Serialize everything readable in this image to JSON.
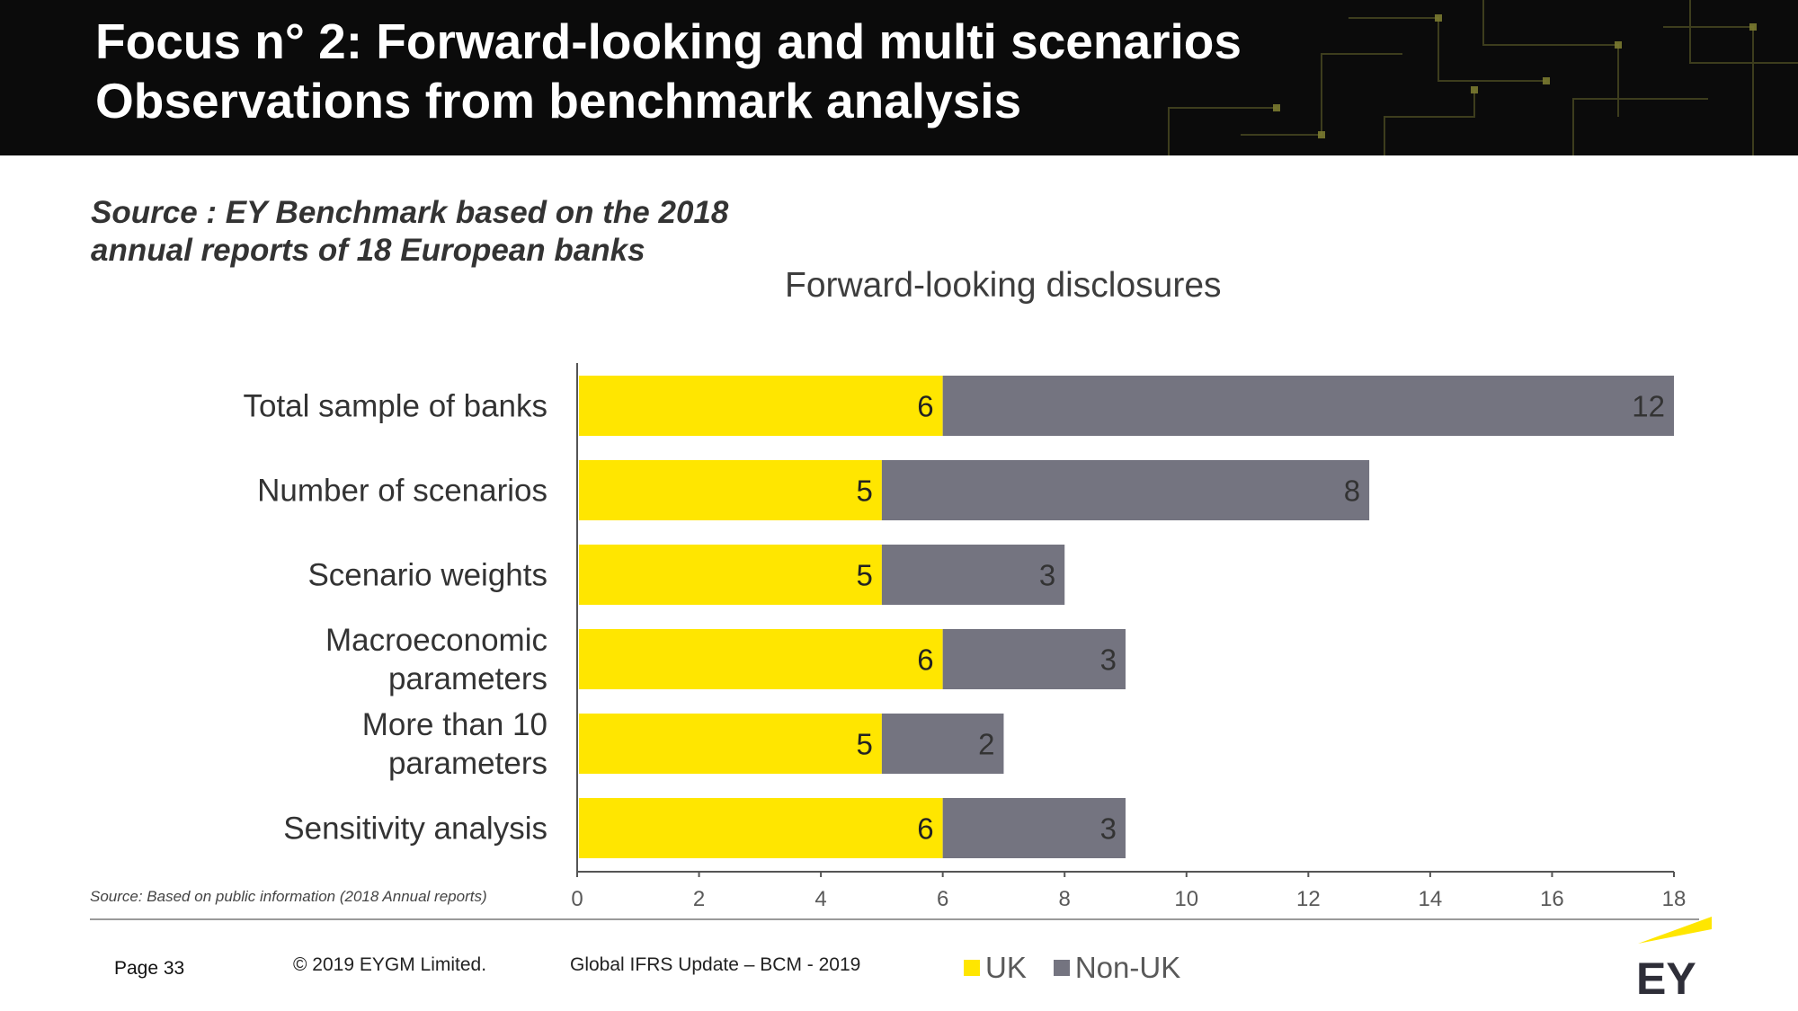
{
  "header": {
    "title_line1": "Focus n° 2: Forward-looking and multi scenarios",
    "title_line2": "Observations from benchmark analysis"
  },
  "source": {
    "line1": "Source : EY Benchmark based on the 2018",
    "line2": "annual reports of 18 European banks"
  },
  "chart_data": {
    "type": "bar",
    "orientation": "horizontal",
    "stacked": true,
    "title": "Forward-looking disclosures",
    "categories": [
      [
        "Total sample of banks"
      ],
      [
        "Number of scenarios"
      ],
      [
        "Scenario weights"
      ],
      [
        "Macroeconomic",
        "parameters"
      ],
      [
        "More than 10",
        "parameters"
      ],
      [
        "Sensitivity analysis"
      ]
    ],
    "series": [
      {
        "name": "UK",
        "color": "#ffe600",
        "values": [
          6,
          5,
          5,
          6,
          5,
          6
        ]
      },
      {
        "name": "Non-UK",
        "color": "#747480",
        "values": [
          12,
          8,
          3,
          3,
          2,
          3
        ]
      }
    ],
    "xlim": [
      0,
      18
    ],
    "x_ticks": [
      "0",
      "2",
      "4",
      "6",
      "8",
      "10",
      "12",
      "14",
      "16",
      "18"
    ],
    "grid": false,
    "legend_position": "bottom"
  },
  "footnote": "Source: Based on public information (2018 Annual reports)",
  "footer": {
    "page": "Page 33",
    "copyright": "© 2019 EYGM Limited.",
    "doc_title": "Global IFRS Update – BCM - 2019"
  },
  "brand": {
    "logo_text": "EY",
    "accent_color": "#ffe600"
  }
}
